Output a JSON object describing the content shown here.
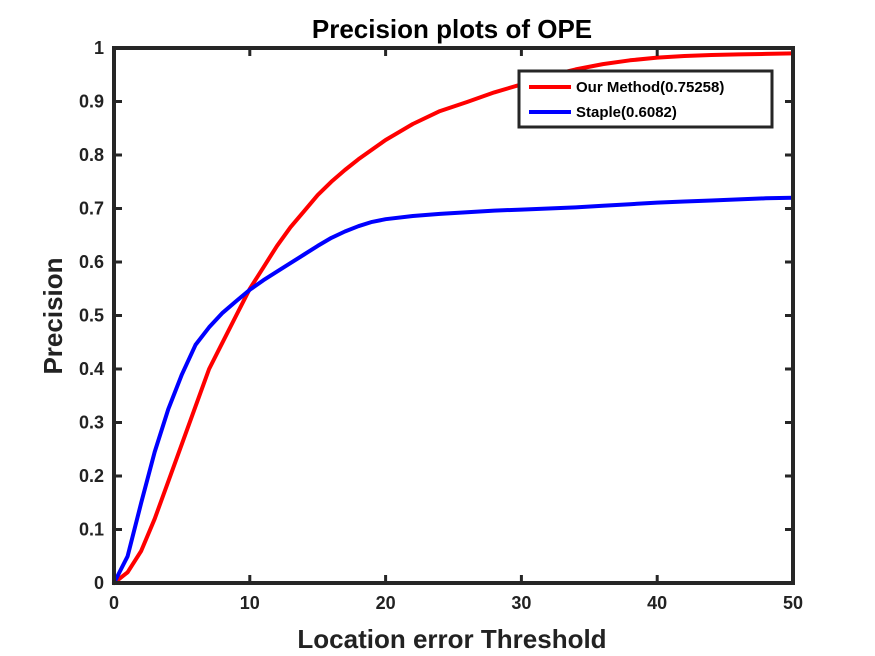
{
  "chart_data": {
    "type": "line",
    "title": "Precision plots of OPE",
    "xlabel": "Location error Threshold",
    "ylabel": "Precision",
    "xlim": [
      0,
      50
    ],
    "ylim": [
      0,
      1
    ],
    "xticks": [
      "0",
      "10",
      "20",
      "30",
      "40",
      "50"
    ],
    "yticks": [
      "0",
      "0.1",
      "0.2",
      "0.3",
      "0.4",
      "0.5",
      "0.6",
      "0.7",
      "0.8",
      "0.9",
      "1"
    ],
    "grid": false,
    "legend_position": "top-right",
    "series": [
      {
        "name": "Our Method(0.75258)",
        "color": "#ff0000",
        "x": [
          0,
          1,
          2,
          3,
          4,
          5,
          6,
          7,
          8,
          9,
          10,
          11,
          12,
          13,
          14,
          15,
          16,
          17,
          18,
          19,
          20,
          22,
          24,
          26,
          28,
          30,
          32,
          34,
          36,
          38,
          40,
          42,
          44,
          46,
          48,
          50
        ],
        "y": [
          0,
          0.02,
          0.06,
          0.12,
          0.19,
          0.26,
          0.33,
          0.4,
          0.45,
          0.5,
          0.55,
          0.59,
          0.63,
          0.665,
          0.695,
          0.725,
          0.75,
          0.772,
          0.792,
          0.81,
          0.828,
          0.858,
          0.882,
          0.899,
          0.917,
          0.932,
          0.948,
          0.96,
          0.97,
          0.977,
          0.982,
          0.985,
          0.987,
          0.988,
          0.989,
          0.99
        ]
      },
      {
        "name": "Staple(0.6082)",
        "color": "#0000ff",
        "x": [
          0,
          1,
          2,
          3,
          4,
          5,
          6,
          7,
          8,
          9,
          10,
          11,
          12,
          13,
          14,
          15,
          16,
          17,
          18,
          19,
          20,
          22,
          24,
          26,
          28,
          30,
          32,
          34,
          36,
          38,
          40,
          42,
          44,
          46,
          48,
          50
        ],
        "y": [
          0,
          0.05,
          0.15,
          0.245,
          0.325,
          0.39,
          0.445,
          0.478,
          0.505,
          0.527,
          0.548,
          0.566,
          0.582,
          0.598,
          0.614,
          0.63,
          0.645,
          0.657,
          0.667,
          0.675,
          0.68,
          0.686,
          0.69,
          0.693,
          0.696,
          0.698,
          0.7,
          0.702,
          0.705,
          0.708,
          0.711,
          0.713,
          0.715,
          0.717,
          0.719,
          0.72
        ]
      }
    ]
  }
}
